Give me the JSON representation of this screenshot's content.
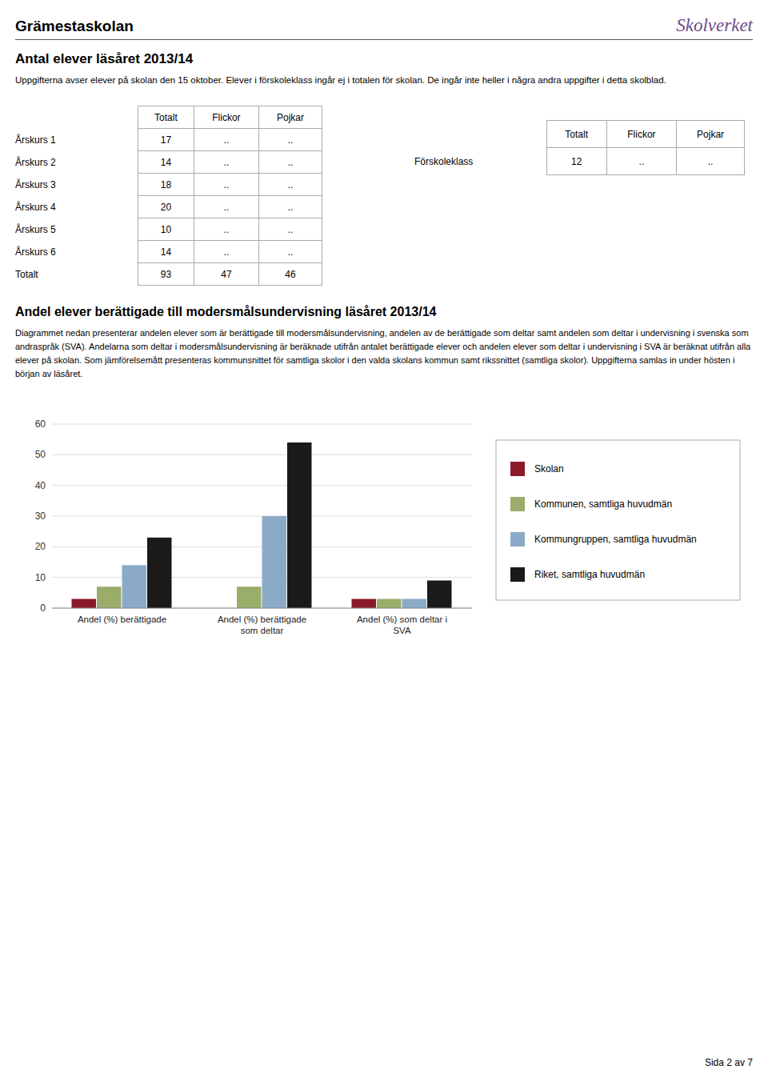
{
  "title": "Grämestaskolan",
  "publisher": "Skolverket",
  "section_title": "Antal elever läsåret 2013/14",
  "section_subtitle": "Uppgifterna avser elever på skolan den 15 oktober. Elever i förskoleklass ingår ej i totalen för skolan. De ingår inte heller i några andra uppgifter i detta skolblad.",
  "tables": [
    {
      "headers": [
        "Totalt",
        "Flickor",
        "Pojkar"
      ],
      "rows": [
        {
          "label": "Årskurs 1",
          "values": [
            17,
            "..",
            ".."
          ]
        },
        {
          "label": "Årskurs 2",
          "values": [
            14,
            "..",
            ".."
          ]
        },
        {
          "label": "Årskurs 3",
          "values": [
            18,
            "..",
            ".."
          ]
        },
        {
          "label": "Årskurs 4",
          "values": [
            20,
            "..",
            ".."
          ]
        },
        {
          "label": "Årskurs 5",
          "values": [
            10,
            "..",
            ".."
          ]
        },
        {
          "label": "Årskurs 6",
          "values": [
            14,
            "..",
            ".."
          ]
        },
        {
          "label": "Totalt",
          "values": [
            93,
            47,
            46
          ]
        }
      ]
    },
    {
      "headers": [
        "Totalt",
        "Flickor",
        "Pojkar"
      ],
      "rows": [
        {
          "label": "Förskoleklass",
          "values": [
            12,
            "..",
            ".."
          ]
        }
      ]
    }
  ],
  "chart_data": {
    "type": "bar",
    "title": "Andel elever berättigade till modersmålsundervisning läsåret 2013/14",
    "subtitle": "Diagrammet nedan presenterar andelen elever som är berättigade till modersmålsundervisning, andelen av de berättigade som deltar samt andelen som deltar i undervisning i svenska som andraspråk (SVA). Andelarna som deltar i modersmålsundervisning är beräknade utifrån antalet berättigade elever och andelen elever som deltar i undervisning i SVA är beräknat utifrån alla elever på skolan. Som jämförelsemått presenteras kommunsnittet för samtliga skolor i den valda skolans kommun samt rikssnittet (samtliga skolor). Uppgifterna samlas in under hösten i början av läsåret.",
    "categories": [
      "Andel (%) berättigade",
      "Andel (%) berättigade som deltar",
      "Andel (%) som deltar i SVA"
    ],
    "series": [
      {
        "name": "Skolan",
        "color": "#8B1A2A",
        "values": [
          3.0,
          0.0,
          3.0
        ]
      },
      {
        "name": "Kommunen, samtliga huvudmän",
        "color": "#9BAD6B",
        "values": [
          7.0,
          7.0,
          3.0
        ]
      },
      {
        "name": "Kommungruppen, samtliga huvudmän",
        "color": "#8BAAC8",
        "values": [
          14.0,
          30.0,
          3.0
        ]
      },
      {
        "name": "Riket, samtliga huvudmän",
        "color": "#1A1A1A",
        "values": [
          23.0,
          54.0,
          9.0
        ]
      }
    ],
    "ylim": [
      0,
      60
    ],
    "yticks": [
      0,
      10,
      20,
      30,
      40,
      50,
      60
    ],
    "grid": true,
    "legend": "right"
  },
  "page_note": "Sida 2 av 7"
}
